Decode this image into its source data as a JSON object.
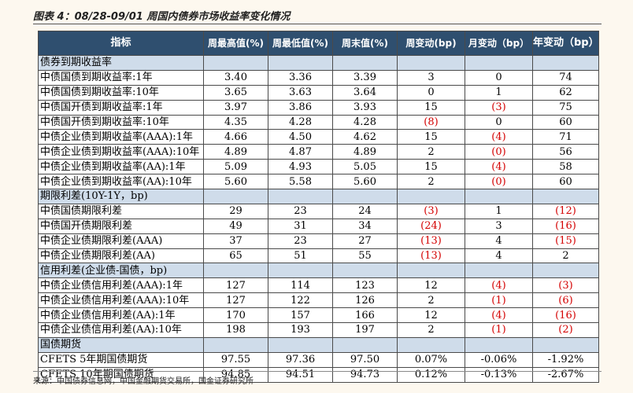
{
  "title": "图表 4：08/28-09/01 周国内债券市场收益率变化情况",
  "headers": [
    "指标",
    "周最高值(%)",
    "周最低值(%)",
    "周末值(%)",
    "周变动(bp)",
    "月变动（bp）",
    "年变动（bp）"
  ],
  "rows": [
    {
      "type": "section",
      "label": "债券到期收益率"
    },
    {
      "type": "data",
      "label": "中债国债到期收益率:1年",
      "values": [
        "3.40",
        "3.36",
        "3.39",
        "3",
        "0",
        "74"
      ]
    },
    {
      "type": "data",
      "label": "中债国债到期收益率:10年",
      "values": [
        "3.65",
        "3.63",
        "3.64",
        "0",
        "1",
        "62"
      ]
    },
    {
      "type": "data",
      "label": "中债国开债到期收益率:1年",
      "values": [
        "3.97",
        "3.86",
        "3.93",
        "15",
        "(3)",
        "75"
      ]
    },
    {
      "type": "data",
      "label": "中债国开债到期收益率:10年",
      "values": [
        "4.35",
        "4.28",
        "4.28",
        "(8)",
        "0",
        "60"
      ]
    },
    {
      "type": "data",
      "label": "中债企业债到期收益率(AAA):1年",
      "values": [
        "4.66",
        "4.50",
        "4.62",
        "15",
        "(4)",
        "71"
      ]
    },
    {
      "type": "data",
      "label": "中债企业债到期收益率(AAA):10年",
      "values": [
        "4.89",
        "4.87",
        "4.89",
        "2",
        "(0)",
        "56"
      ]
    },
    {
      "type": "data",
      "label": "中债企业债到期收益率(AA):1年",
      "values": [
        "5.09",
        "4.93",
        "5.05",
        "15",
        "(4)",
        "58"
      ]
    },
    {
      "type": "data",
      "label": "中债企业债到期收益率(AA):10年",
      "values": [
        "5.60",
        "5.58",
        "5.60",
        "2",
        "(0)",
        "60"
      ]
    },
    {
      "type": "section",
      "label": "期限利差(10Y-1Y，bp)"
    },
    {
      "type": "data",
      "label": "中债国债期限利差",
      "values": [
        "29",
        "23",
        "24",
        "(3)",
        "1",
        "(12)"
      ]
    },
    {
      "type": "data",
      "label": "中债国开债期限利差",
      "values": [
        "49",
        "31",
        "34",
        "(24)",
        "3",
        "(16)"
      ]
    },
    {
      "type": "data",
      "label": "中债企业债期限利差(AAA)",
      "values": [
        "37",
        "23",
        "27",
        "(13)",
        "4",
        "(15)"
      ]
    },
    {
      "type": "data",
      "label": "中债企业债期限利差(AA)",
      "values": [
        "65",
        "51",
        "55",
        "(13)",
        "4",
        "2"
      ]
    },
    {
      "type": "section",
      "label": "信用利差(企业债-国债，bp)"
    },
    {
      "type": "data",
      "label": "中债企业债信用利差(AAA):1年",
      "values": [
        "127",
        "114",
        "123",
        "12",
        "(4)",
        "(3)"
      ]
    },
    {
      "type": "data",
      "label": "中债企业债信用利差(AAA):10年",
      "values": [
        "127",
        "122",
        "126",
        "2",
        "(1)",
        "(6)"
      ]
    },
    {
      "type": "data",
      "label": "中债企业债信用利差(AA):1年",
      "values": [
        "170",
        "157",
        "166",
        "12",
        "(4)",
        "(16)"
      ]
    },
    {
      "type": "data",
      "label": "中债企业债信用利差(AA):10年",
      "values": [
        "198",
        "193",
        "197",
        "2",
        "(1)",
        "(2)"
      ]
    },
    {
      "type": "section",
      "label": "国债期货"
    },
    {
      "type": "data",
      "label": "CFETS 5年期国债期货",
      "values": [
        "97.55",
        "97.36",
        "97.50",
        "0.07%",
        "-0.06%",
        "-1.92%"
      ]
    },
    {
      "type": "data",
      "label": "CFETS 10年期国债期货",
      "values": [
        "94.85",
        "94.51",
        "94.73",
        "0.12%",
        "-0.13%",
        "-2.67%"
      ]
    }
  ],
  "source": "来源：中国债券信息网，中国金融期货交易所，国金证券研究所",
  "colors": {
    "header_bg": "#2f4f6f",
    "section_bg": "#cfdcea",
    "negative": "#d40000",
    "page_bg": "#fdf8ef"
  }
}
